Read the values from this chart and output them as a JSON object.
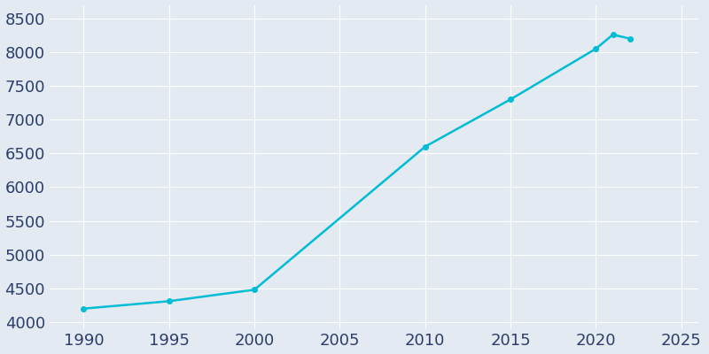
{
  "years": [
    1990,
    1995,
    2000,
    2010,
    2015,
    2020,
    2021,
    2022
  ],
  "population": [
    4200,
    4310,
    4480,
    6600,
    7300,
    8050,
    8260,
    8200
  ],
  "line_color": "#00BCD4",
  "marker_color": "#00BCD4",
  "plot_bg_color": "#E3EAF2",
  "fig_bg_color": "#E3EAF2",
  "grid_color": "#FFFFFF",
  "tick_label_color": "#2C3E6B",
  "xlim": [
    1988,
    2026
  ],
  "ylim": [
    3900,
    8700
  ],
  "yticks": [
    4000,
    4500,
    5000,
    5500,
    6000,
    6500,
    7000,
    7500,
    8000,
    8500
  ],
  "xticks": [
    1990,
    1995,
    2000,
    2005,
    2010,
    2015,
    2020,
    2025
  ],
  "line_width": 1.8,
  "marker_size": 4,
  "tick_fontsize": 13
}
